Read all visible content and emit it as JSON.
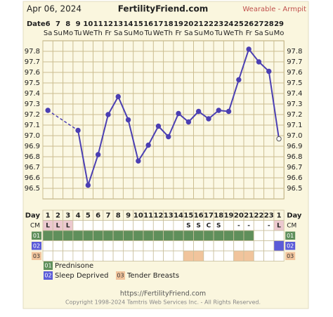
{
  "header": {
    "date": "Apr 06, 2024",
    "site": "FertilityFriend.com",
    "method": "Wearable - Armpit"
  },
  "chart_data": {
    "type": "line",
    "x_label": "Date",
    "categories": [
      "6",
      "7",
      "8",
      "9",
      "10",
      "11",
      "12",
      "13",
      "14",
      "15",
      "16",
      "17",
      "18",
      "19",
      "20",
      "21",
      "22",
      "23",
      "24",
      "25",
      "26",
      "27",
      "28",
      "29"
    ],
    "weekdays": [
      "Sa",
      "Su",
      "Mo",
      "Tu",
      "We",
      "Th",
      "Fr",
      "Sa",
      "Su",
      "Mo",
      "Tu",
      "We",
      "Th",
      "Fr",
      "Sa",
      "Su",
      "Mo",
      "Tu",
      "We",
      "Th",
      "Fr",
      "Sa",
      "Su",
      "Mo"
    ],
    "values": [
      97.24,
      null,
      null,
      97.05,
      96.53,
      96.82,
      97.2,
      97.37,
      97.15,
      96.76,
      96.91,
      97.09,
      96.99,
      97.21,
      97.13,
      97.23,
      97.16,
      97.24,
      97.23,
      97.53,
      97.82,
      97.7,
      97.61,
      96.97
    ],
    "color": "#4b3fb3",
    "ylim": [
      96.4,
      97.9
    ],
    "yticks": [
      96.5,
      96.6,
      96.7,
      96.8,
      96.9,
      {
        "value": 97,
        "label": "97.0"
      },
      97.1,
      97.2,
      97.3,
      97.4,
      97.5,
      97.6,
      97.7,
      97.8
    ],
    "grid": true
  },
  "day_row": {
    "label": "Day",
    "values": [
      1,
      2,
      3,
      4,
      5,
      6,
      7,
      8,
      9,
      10,
      11,
      12,
      13,
      14,
      15,
      16,
      17,
      18,
      19,
      20,
      21,
      22,
      23,
      1
    ]
  },
  "cm_row": {
    "label": "CM",
    "values": [
      "L",
      "L",
      "L",
      null,
      null,
      null,
      null,
      null,
      null,
      null,
      null,
      null,
      null,
      null,
      "S",
      "S",
      "C",
      "S",
      null,
      "-",
      "-",
      null,
      "-",
      "L"
    ]
  },
  "rows": [
    {
      "code": "01",
      "label": "Prednisone",
      "color": "#5f8f5b",
      "days": [
        true,
        true,
        true,
        true,
        true,
        true,
        true,
        true,
        true,
        true,
        true,
        true,
        true,
        true,
        true,
        true,
        true,
        true,
        true,
        true,
        true,
        false,
        false,
        false
      ]
    },
    {
      "code": "02",
      "label": "Sleep Deprived",
      "color": "#5b5bd8",
      "days": [
        false,
        false,
        false,
        false,
        false,
        false,
        false,
        false,
        false,
        false,
        false,
        false,
        false,
        false,
        false,
        false,
        false,
        false,
        false,
        false,
        false,
        false,
        false,
        true
      ]
    },
    {
      "code": "03",
      "label": "Tender Breasts",
      "color": "#f1c49c",
      "days": [
        false,
        false,
        false,
        false,
        false,
        false,
        false,
        false,
        false,
        false,
        false,
        false,
        false,
        false,
        true,
        true,
        false,
        false,
        false,
        true,
        true,
        false,
        false,
        false
      ]
    }
  ],
  "footer": {
    "url": "https://FertilityFriend.com",
    "copyright": "Copyright 1998-2024 Tamtris Web Services Inc. - All Rights Reserved."
  }
}
